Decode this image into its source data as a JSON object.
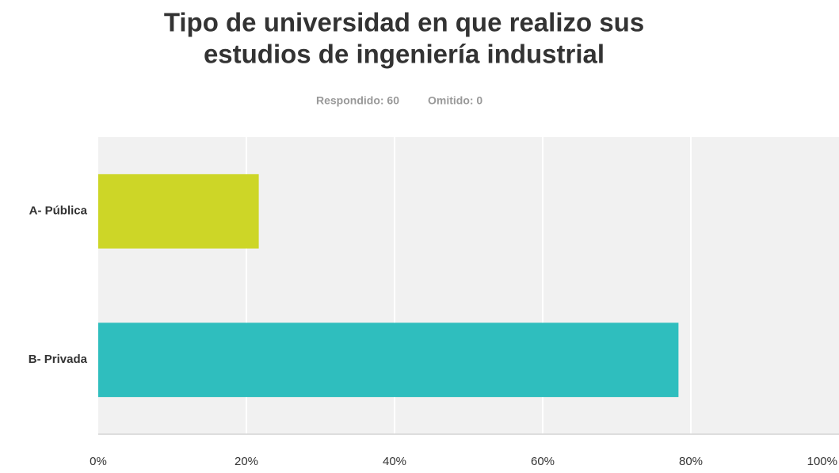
{
  "chart_data": {
    "type": "bar",
    "orientation": "horizontal",
    "title": [
      "Tipo de universidad en que realizo sus",
      "estudios de ingeniería industrial"
    ],
    "subtitle": [
      "Respondido: 60",
      "Omitido: 0"
    ],
    "categories": [
      "A- Pública",
      "B- Privada"
    ],
    "values": [
      21.67,
      78.33
    ],
    "colors": [
      "#cdd627",
      "#2fbebe"
    ],
    "xlim": [
      0,
      100
    ],
    "xticks": [
      {
        "value": 0,
        "label": "0%"
      },
      {
        "value": 20,
        "label": "20%"
      },
      {
        "value": 40,
        "label": "40%"
      },
      {
        "value": 60,
        "label": "60%"
      },
      {
        "value": 80,
        "label": "80%"
      },
      {
        "value": 100,
        "label": "100%"
      }
    ],
    "grid": true
  }
}
